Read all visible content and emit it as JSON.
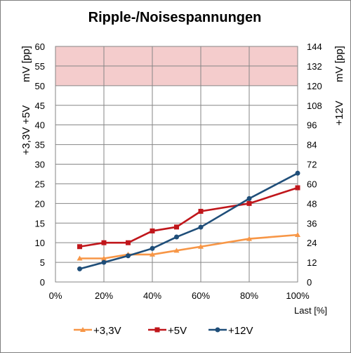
{
  "chart_data": {
    "type": "line",
    "title": "Ripple-/Noisespannungen",
    "xlabel": "Last [%]",
    "ylabel_left_top": "mV [pp]",
    "ylabel_left_bottom": "+3,3V +5V",
    "ylabel_right_top": "mV [pp]",
    "ylabel_right_bottom": "+12V",
    "x_ticks": [
      "0%",
      "20%",
      "40%",
      "60%",
      "80%",
      "100%"
    ],
    "xlim": [
      0,
      100
    ],
    "ylim_left": [
      0,
      60
    ],
    "ylim_right": [
      0,
      144
    ],
    "y_ticks_left": [
      "0",
      "5",
      "10",
      "15",
      "20",
      "25",
      "30",
      "35",
      "40",
      "45",
      "50",
      "55",
      "60"
    ],
    "y_ticks_right": [
      "0",
      "12",
      "24",
      "36",
      "48",
      "60",
      "72",
      "84",
      "96",
      "108",
      "120",
      "132",
      "144"
    ],
    "limit_band_left": [
      50,
      60
    ],
    "limit_band_color": "#f4cccc",
    "grid": true,
    "legend_position": "bottom",
    "series": [
      {
        "name": "+3,3V",
        "axis": "left",
        "color": "#f79646",
        "marker": "triangle",
        "x": [
          10,
          20,
          30,
          40,
          50,
          60,
          80,
          100
        ],
        "values": [
          6,
          6,
          7,
          7,
          8,
          9,
          11,
          12
        ]
      },
      {
        "name": "+5V",
        "axis": "left",
        "color": "#c0161b",
        "marker": "square",
        "x": [
          10,
          20,
          30,
          40,
          50,
          60,
          80,
          100
        ],
        "values": [
          9,
          10,
          10,
          13,
          14,
          18,
          20,
          24
        ]
      },
      {
        "name": "+12V",
        "axis": "right",
        "color": "#1f4e79",
        "marker": "circle",
        "x": [
          10,
          20,
          30,
          40,
          50,
          60,
          80,
          100
        ],
        "values": [
          8,
          12,
          16,
          20.5,
          27.5,
          33.5,
          51,
          66.5
        ]
      }
    ]
  }
}
